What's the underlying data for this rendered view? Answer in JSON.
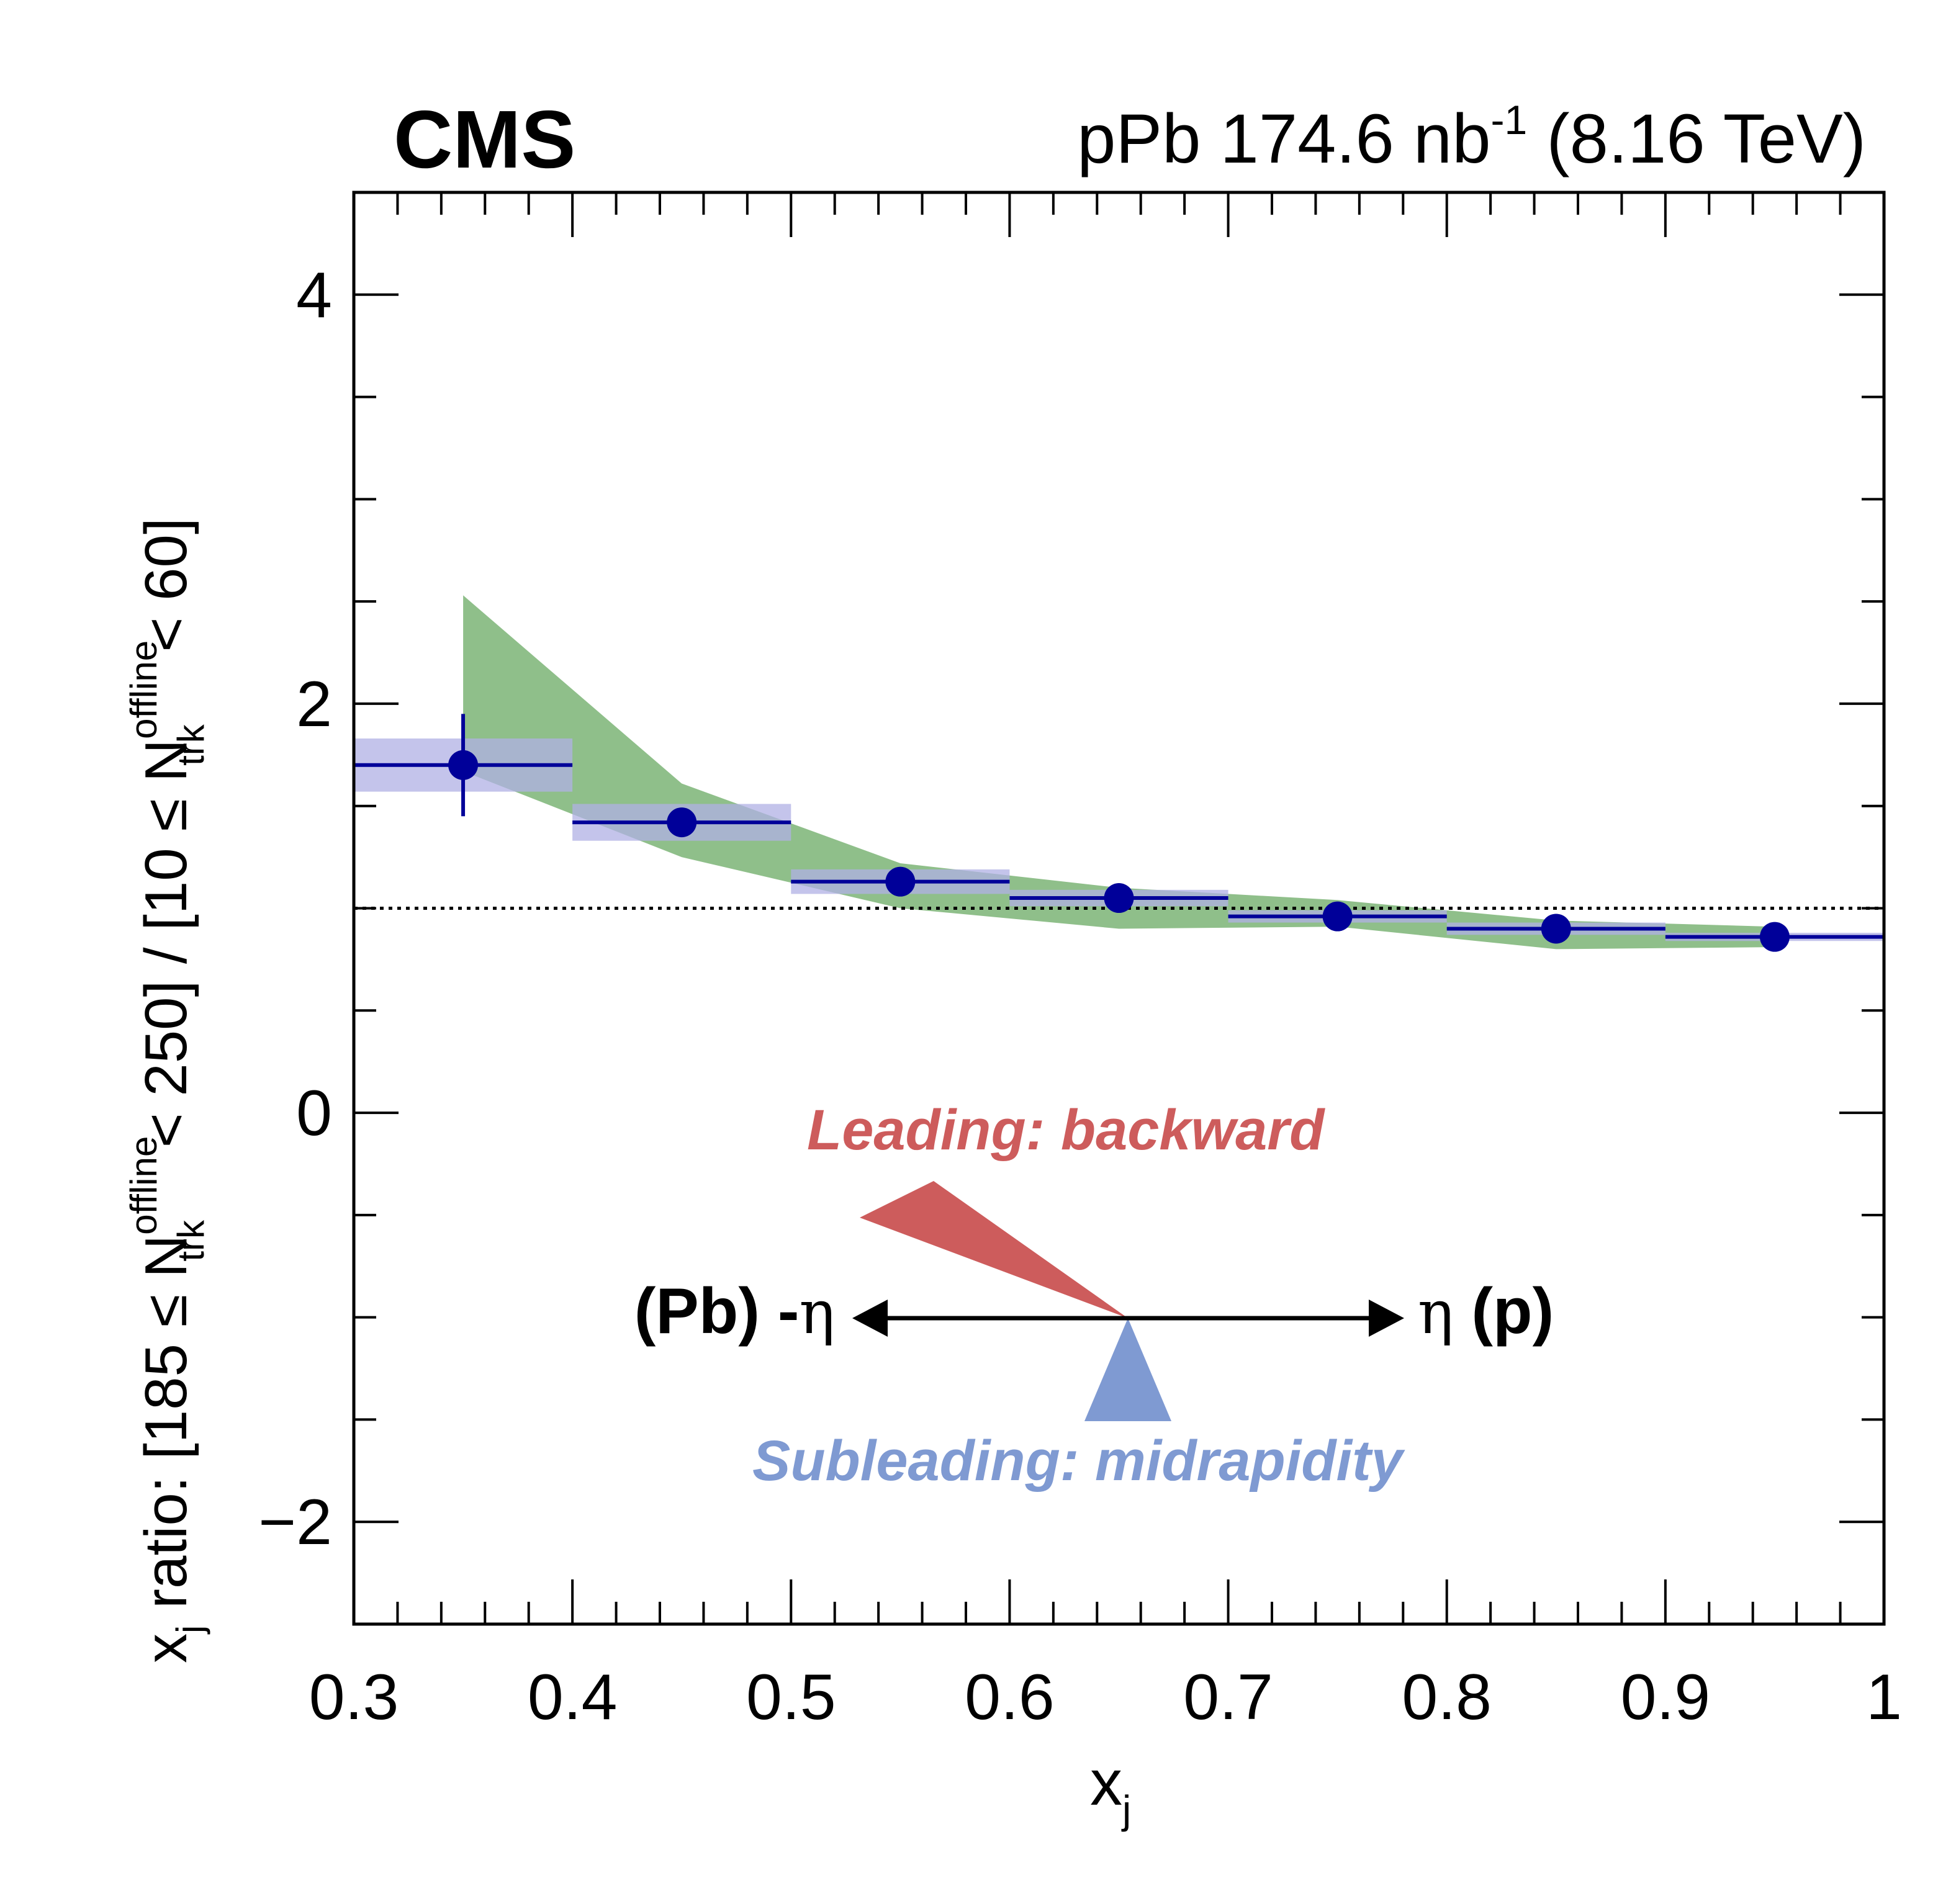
{
  "header": {
    "experiment": "CMS",
    "lumi_prefix": "pPb 174.6 nb",
    "lumi_exponent": "-1",
    "lumi_suffix": "(8.16 TeV)"
  },
  "chart_data": {
    "type": "scatter",
    "title": "",
    "xlabel": "x",
    "xlabel_sub": "j",
    "ylabel": {
      "part1": "x",
      "part1_sub": "j",
      "part2": " ratio: [185 ≤ N",
      "part2_sup": "offline",
      "part2_sub": "trk",
      "part3": " < 250] / [10 ≤ N",
      "part3_sup": "offline",
      "part3_sub": "trk",
      "part4": " < 60]"
    },
    "xlim": [
      0.3,
      1.0
    ],
    "ylim": [
      -2.5,
      4.5
    ],
    "xticks": [
      "0.3",
      "0.4",
      "0.5",
      "0.6",
      "0.7",
      "0.8",
      "0.9",
      "1"
    ],
    "xtick_values": [
      0.3,
      0.4,
      0.5,
      0.6,
      0.7,
      0.8,
      0.9,
      1.0
    ],
    "yticks": [
      "−2",
      "0",
      "2",
      "4"
    ],
    "ytick_values": [
      -2,
      0,
      2,
      4
    ],
    "reference_line": 1.0,
    "series": [
      {
        "kind": "data",
        "color": "#000099",
        "syst_color": "#b0b0e4",
        "points": [
          {
            "x": 0.35,
            "xlo": 0.3,
            "xhi": 0.4,
            "y": 1.7,
            "stat": 0.25,
            "syst": 0.13
          },
          {
            "x": 0.45,
            "xlo": 0.4,
            "xhi": 0.5,
            "y": 1.42,
            "stat": 0.0,
            "syst": 0.09
          },
          {
            "x": 0.55,
            "xlo": 0.5,
            "xhi": 0.6,
            "y": 1.13,
            "stat": 0.0,
            "syst": 0.06
          },
          {
            "x": 0.65,
            "xlo": 0.6,
            "xhi": 0.7,
            "y": 1.05,
            "stat": 0.0,
            "syst": 0.04
          },
          {
            "x": 0.75,
            "xlo": 0.7,
            "xhi": 0.8,
            "y": 0.96,
            "stat": 0.0,
            "syst": 0.03
          },
          {
            "x": 0.85,
            "xlo": 0.8,
            "xhi": 0.9,
            "y": 0.9,
            "stat": 0.0,
            "syst": 0.03
          },
          {
            "x": 0.95,
            "xlo": 0.9,
            "xhi": 1.0,
            "y": 0.86,
            "stat": 0.0,
            "syst": 0.02
          }
        ]
      },
      {
        "kind": "band",
        "color": "#8fbf8a",
        "x": [
          0.35,
          0.45,
          0.55,
          0.65,
          0.75,
          0.85,
          0.95
        ],
        "upper": [
          2.53,
          1.61,
          1.22,
          1.1,
          1.04,
          0.94,
          0.91
        ],
        "lower": [
          1.67,
          1.25,
          1.0,
          0.9,
          0.91,
          0.8,
          0.81
        ]
      }
    ]
  },
  "annotations": {
    "leading": "Leading: backward",
    "subleading": "Subleading: midrapidity",
    "left_dir": "(Pb) -",
    "left_eta": "η",
    "right_eta": "η",
    "right_dir": " (p)",
    "leading_color": "#cd5c5c",
    "subleading_color": "#7f9ad2"
  }
}
